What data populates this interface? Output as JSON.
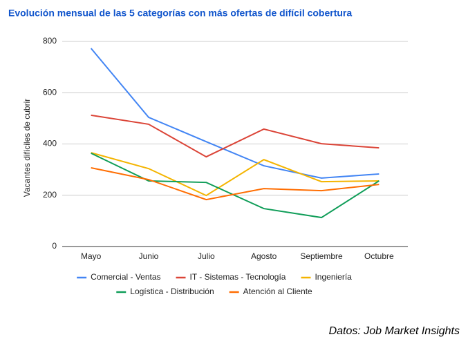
{
  "chart_data": {
    "type": "line",
    "title": "Evolución mensual de las 5 categorías con más ofertas de difícil cobertura",
    "y_label": "Vacantes difíciles de cubrir",
    "source": "Datos: Job Market Insights",
    "categories": [
      "Mayo",
      "Junio",
      "Julio",
      "Agosto",
      "Septiembre",
      "Octubre"
    ],
    "series": [
      {
        "name": "Comercial - Ventas",
        "color": "#4285f4",
        "values": [
          773,
          504,
          409,
          315,
          267,
          283
        ]
      },
      {
        "name": "IT - Sistemas - Tecnología",
        "color": "#db4437",
        "values": [
          512,
          477,
          350,
          458,
          401,
          385
        ]
      },
      {
        "name": "Ingeniería",
        "color": "#f4b400",
        "values": [
          366,
          304,
          199,
          339,
          253,
          256
        ]
      },
      {
        "name": "Logística - Distribución",
        "color": "#0f9d58",
        "values": [
          364,
          256,
          250,
          148,
          113,
          256
        ]
      },
      {
        "name": "Atención al Cliente",
        "color": "#ff6d01",
        "values": [
          307,
          261,
          183,
          226,
          218,
          242
        ]
      }
    ],
    "ylim": [
      0,
      800
    ],
    "yticks": [
      0,
      200,
      400,
      600,
      800
    ],
    "grid": true,
    "legend": "bottom"
  }
}
